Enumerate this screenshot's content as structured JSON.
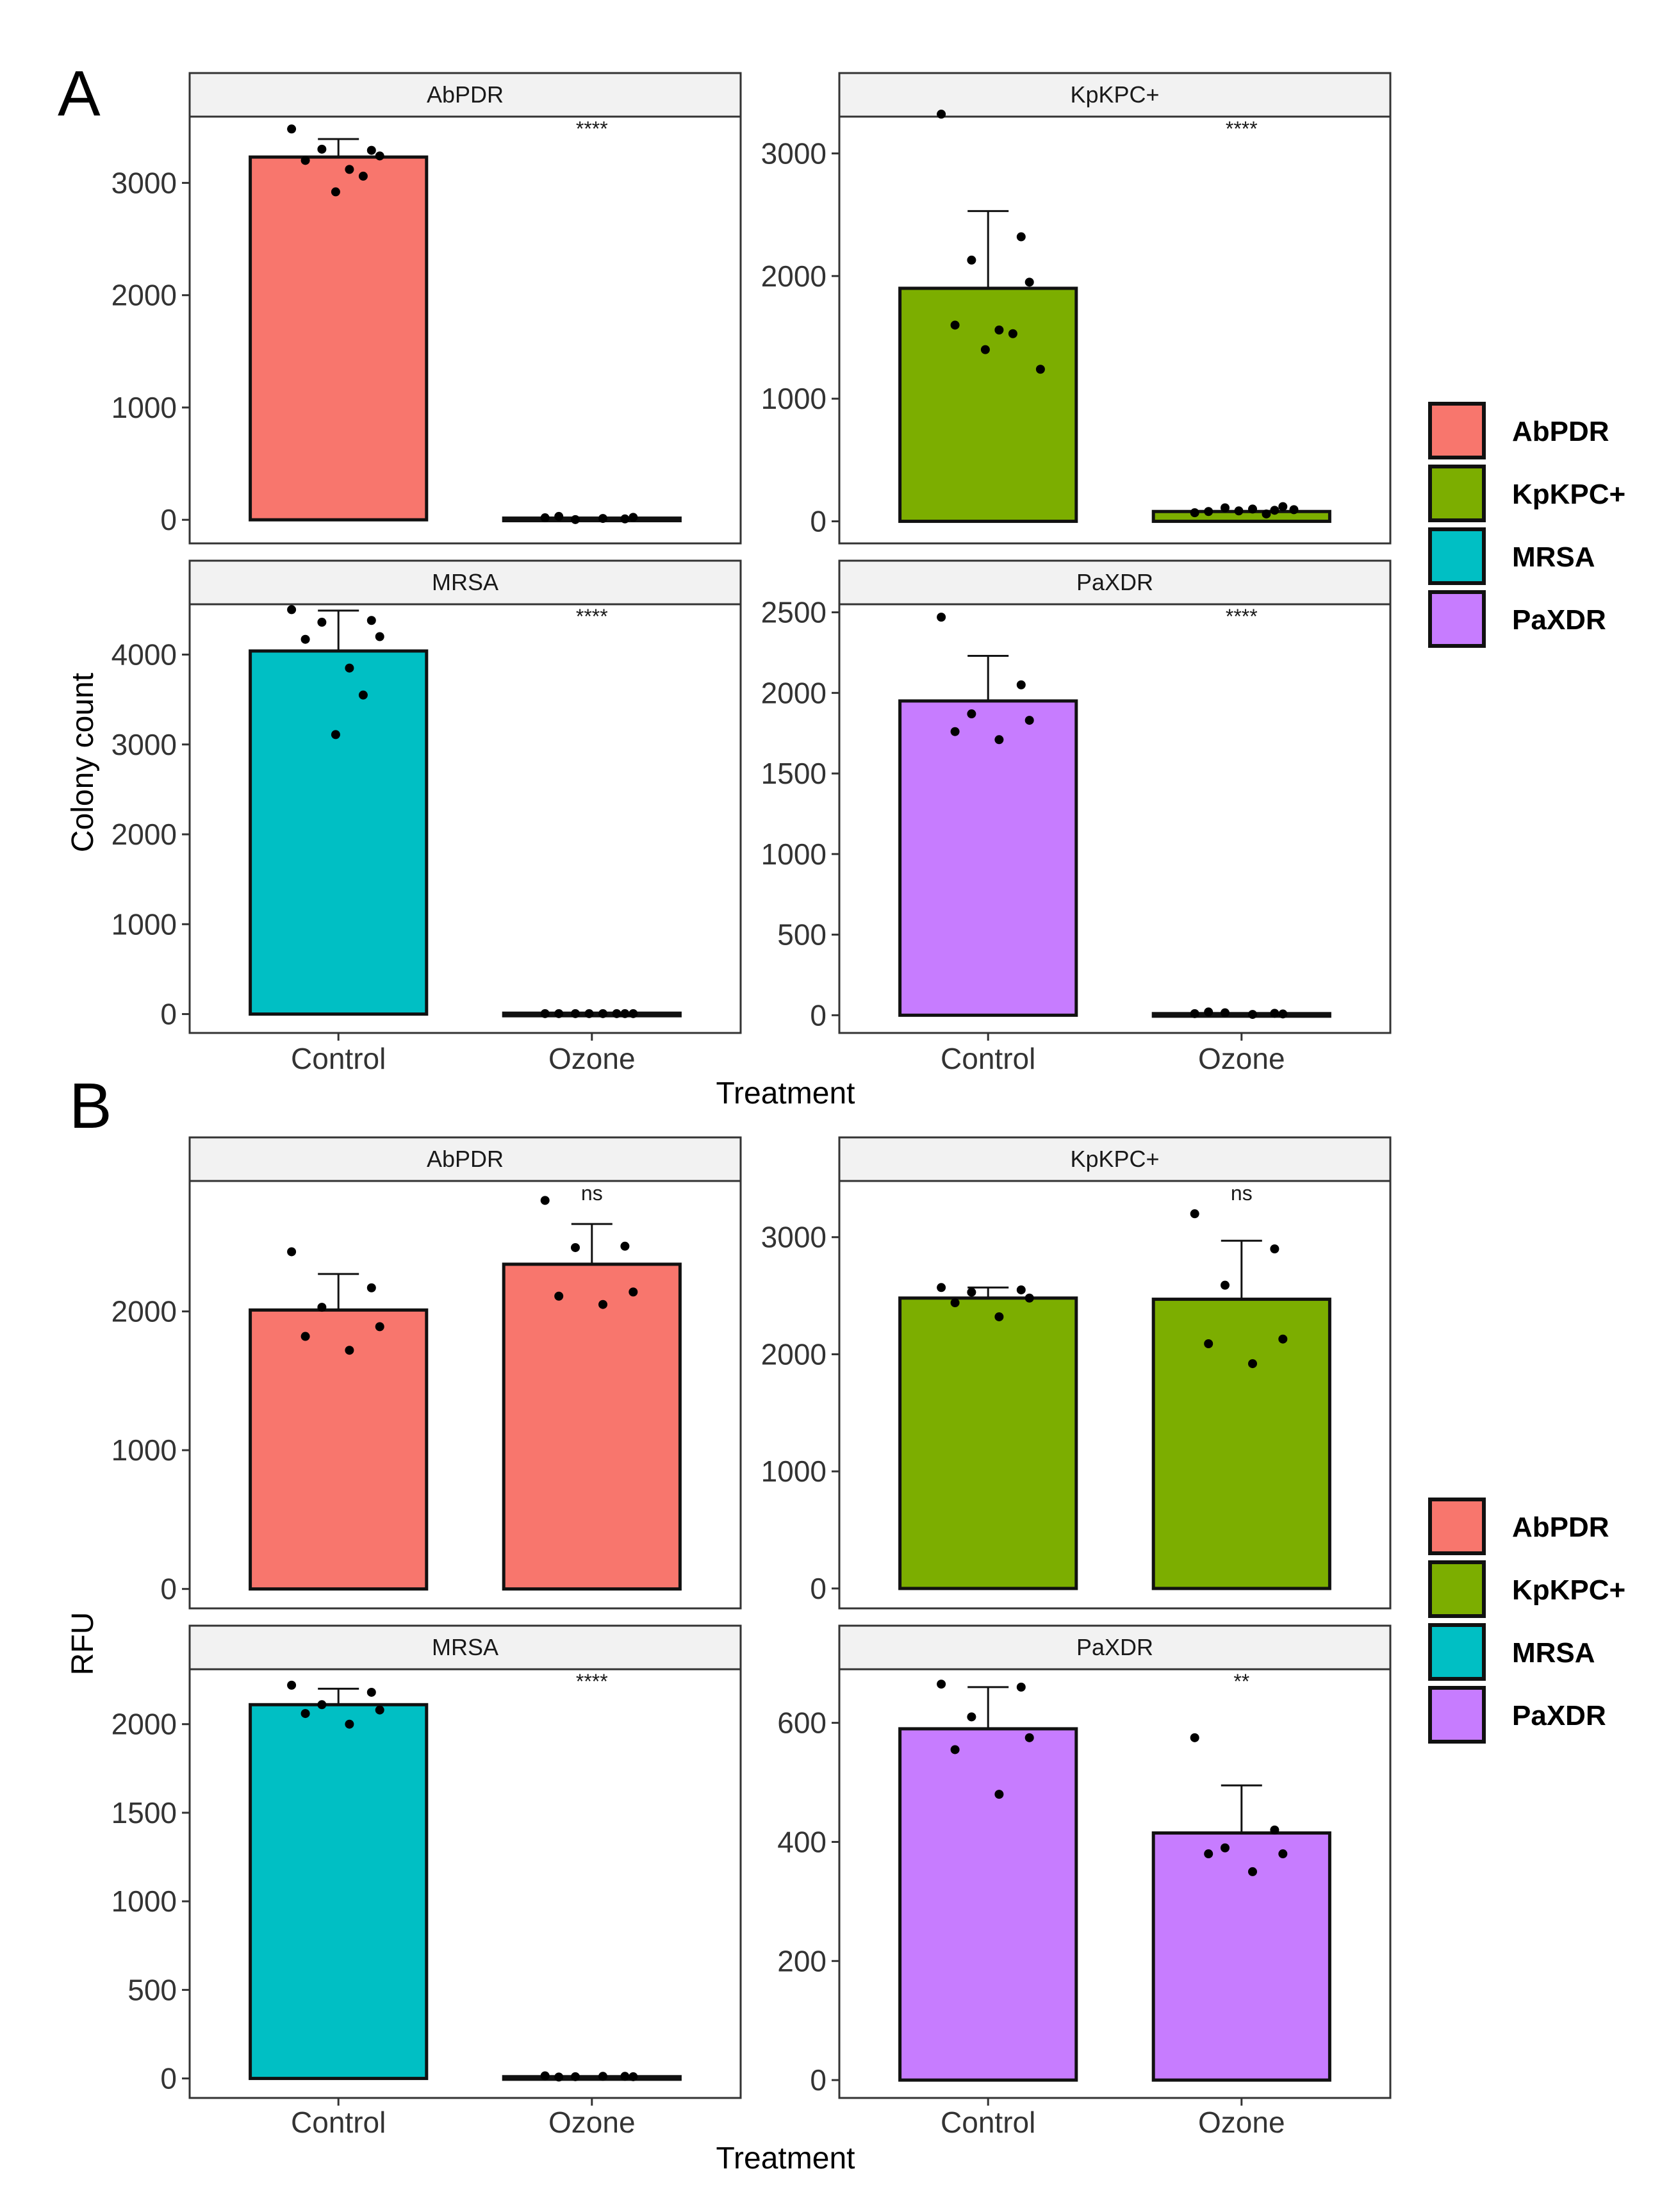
{
  "figure": {
    "panel_letters": [
      "A",
      "B"
    ]
  },
  "chart_data": [
    {
      "panel": "A",
      "type": "bar",
      "facet_type": "wrap",
      "xlabel": "Treatment",
      "ylabel": "Colony count",
      "categories": [
        "Control",
        "Ozone"
      ],
      "grid": false,
      "legend_position": "right",
      "legend": [
        {
          "name": "AbPDR",
          "color": "#F8766D"
        },
        {
          "name": "KpKPC+",
          "color": "#7CAE00"
        },
        {
          "name": "MRSA",
          "color": "#00BFC4"
        },
        {
          "name": "PaXDR",
          "color": "#C77CFF"
        }
      ],
      "facets": [
        {
          "name": "AbPDR",
          "color": "#F8766D",
          "ylim": [
            -210,
            3590
          ],
          "yticks": [
            0,
            1000,
            2000,
            3000
          ],
          "values": [
            3230,
            15
          ],
          "error_upper": [
            3390,
            null
          ],
          "significance": "****",
          "points": [
            [
              3480,
              3290,
              3300,
              3240,
              3200,
              3120,
              3060,
              2920
            ],
            [
              18,
              8,
              2,
              22,
              30,
              12
            ]
          ]
        },
        {
          "name": "KpKPC+",
          "color": "#7CAE00",
          "ylim": [
            -180,
            3300
          ],
          "yticks": [
            0,
            1000,
            2000,
            3000
          ],
          "values": [
            1900,
            80
          ],
          "error_upper": [
            2530,
            null
          ],
          "significance": "****",
          "points": [
            [
              3320,
              2320,
              2130,
              1950,
              1600,
              1560,
              1530,
              1400,
              1240
            ],
            [
              70,
              90,
              110,
              120,
              80,
              100,
              60,
              85,
              95
            ]
          ]
        },
        {
          "name": "MRSA",
          "color": "#00BFC4",
          "ylim": [
            -210,
            4560
          ],
          "yticks": [
            0,
            1000,
            2000,
            3000,
            4000
          ],
          "values": [
            4040,
            10
          ],
          "error_upper": [
            4490,
            null
          ],
          "significance": "****",
          "points": [
            [
              4500,
              4380,
              4360,
              4200,
              4170,
              3850,
              3550,
              3110
            ],
            [
              5,
              5,
              5,
              5,
              5,
              5,
              5,
              5
            ]
          ]
        },
        {
          "name": "PaXDR",
          "color": "#C77CFF",
          "ylim": [
            -110,
            2550
          ],
          "yticks": [
            0,
            500,
            1000,
            1500,
            2000,
            2500
          ],
          "values": [
            1950,
            10
          ],
          "error_upper": [
            2230,
            null
          ],
          "significance": "****",
          "points": [
            [
              2470,
              2050,
              1870,
              1830,
              1760,
              1710
            ],
            [
              10,
              12,
              15,
              8,
              20,
              5
            ]
          ]
        }
      ]
    },
    {
      "panel": "B",
      "type": "bar",
      "facet_type": "wrap",
      "xlabel": "Treatment",
      "ylabel": "RFU",
      "categories": [
        "Control",
        "Ozone"
      ],
      "grid": false,
      "legend_position": "right",
      "legend": [
        {
          "name": "AbPDR",
          "color": "#F8766D"
        },
        {
          "name": "KpKPC+",
          "color": "#7CAE00"
        },
        {
          "name": "MRSA",
          "color": "#00BFC4"
        },
        {
          "name": "PaXDR",
          "color": "#C77CFF"
        }
      ],
      "facets": [
        {
          "name": "AbPDR",
          "color": "#F8766D",
          "ylim": [
            -140,
            2940
          ],
          "yticks": [
            0,
            1000,
            2000
          ],
          "values": [
            2010,
            2340
          ],
          "error_upper": [
            2270,
            2630
          ],
          "significance": "ns",
          "points": [
            [
              2430,
              2170,
              2030,
              1890,
              1820,
              1720
            ],
            [
              2800,
              2470,
              2460,
              2140,
              2110,
              2050
            ]
          ]
        },
        {
          "name": "KpKPC+",
          "color": "#7CAE00",
          "ylim": [
            -170,
            3480
          ],
          "yticks": [
            0,
            1000,
            2000,
            3000
          ],
          "values": [
            2480,
            2470
          ],
          "error_upper": [
            2570,
            2970
          ],
          "significance": "ns",
          "points": [
            [
              2570,
              2550,
              2530,
              2480,
              2440,
              2320
            ],
            [
              3200,
              2900,
              2590,
              2130,
              2090,
              1920
            ]
          ]
        },
        {
          "name": "MRSA",
          "color": "#00BFC4",
          "ylim": [
            -110,
            2310
          ],
          "yticks": [
            0,
            500,
            1000,
            1500,
            2000
          ],
          "values": [
            2110,
            10
          ],
          "error_upper": [
            2200,
            null
          ],
          "significance": "****",
          "points": [
            [
              2220,
              2180,
              2110,
              2080,
              2060,
              2000
            ],
            [
              15,
              12,
              10,
              10,
              8,
              12
            ]
          ]
        },
        {
          "name": "PaXDR",
          "color": "#C77CFF",
          "ylim": [
            -30,
            690
          ],
          "yticks": [
            0,
            200,
            400,
            600
          ],
          "values": [
            590,
            415
          ],
          "error_upper": [
            660,
            495
          ],
          "significance": "**",
          "points": [
            [
              665,
              660,
              610,
              575,
              555,
              480
            ],
            [
              575,
              420,
              390,
              380,
              380,
              350
            ]
          ]
        }
      ]
    }
  ]
}
